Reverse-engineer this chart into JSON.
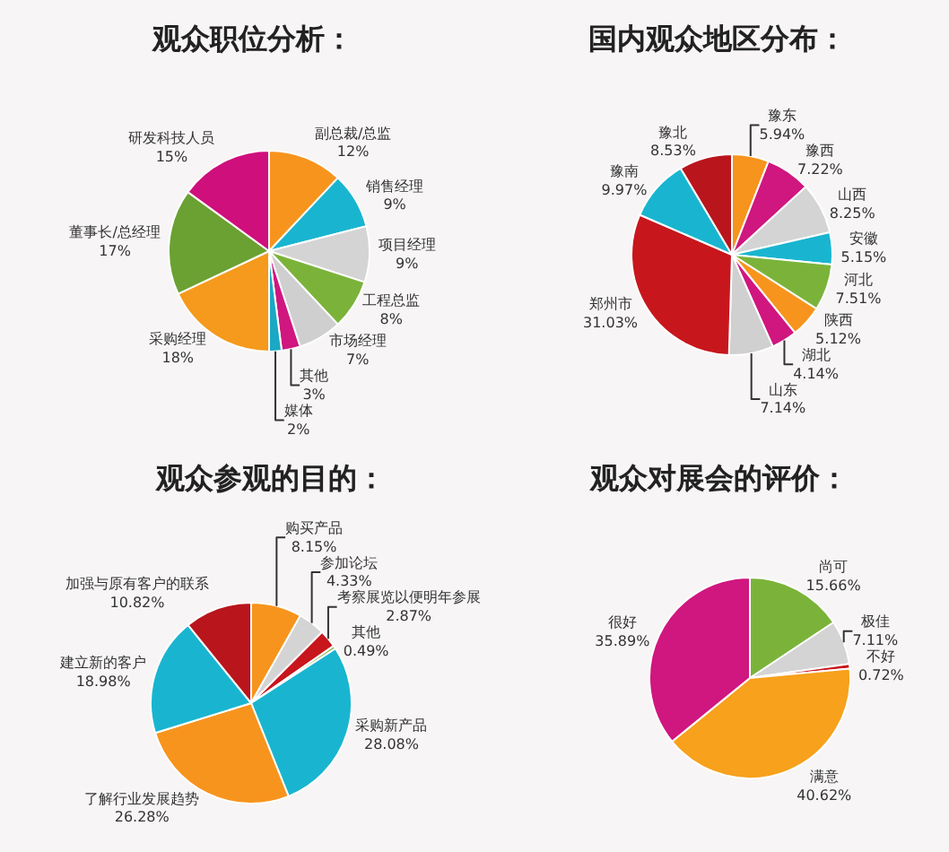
{
  "chart_data": [
    {
      "type": "pie",
      "title": "观众职位分析：",
      "legend": false,
      "categories": [
        "副总裁/总监",
        "销售经理",
        "项目经理",
        "工程总监",
        "市场经理",
        "其他",
        "媒体",
        "采购经理",
        "董事长/总经理",
        "研发科技人员"
      ],
      "values": [
        12,
        9,
        9,
        8,
        7,
        3,
        2,
        18,
        17,
        15
      ],
      "value_labels": [
        "12%",
        "9%",
        "9%",
        "8%",
        "7%",
        "3%",
        "2%",
        "18%",
        "17%",
        "15%"
      ],
      "colors": [
        "#f7941d",
        "#19b5d0",
        "#d4d4d4",
        "#7bb33a",
        "#cfcfcf",
        "#d0167f",
        "#1aa8c4",
        "#f59a1c",
        "#6aa132",
        "#cf0f7c"
      ]
    },
    {
      "type": "pie",
      "title": "国内观众地区分布：",
      "legend": false,
      "categories": [
        "豫东",
        "豫西",
        "山西",
        "安徽",
        "河北",
        "陕西",
        "湖北",
        "山东",
        "郑州市",
        "豫南",
        "豫北"
      ],
      "values": [
        5.94,
        7.22,
        8.25,
        5.15,
        7.51,
        5.12,
        4.14,
        7.14,
        31.03,
        9.97,
        8.53
      ],
      "value_labels": [
        "5.94%",
        "7.22%",
        "8.25%",
        "5.15%",
        "7.51%",
        "5.12%",
        "4.14%",
        "7.14%",
        "31.03%",
        "9.97%",
        "8.53%"
      ],
      "colors": [
        "#f7941d",
        "#d0167f",
        "#d4d4d4",
        "#19b5d0",
        "#7bb33a",
        "#f7941d",
        "#d0167f",
        "#d0d0d0",
        "#c8161d",
        "#19b5d0",
        "#b9151c"
      ]
    },
    {
      "type": "pie",
      "title": "观众参观的目的：",
      "legend": false,
      "categories": [
        "购买产品",
        "参加论坛",
        "考察展览以便明年参展",
        "其他",
        "采购新产品",
        "了解行业发展趋势",
        "建立新的客户",
        "加强与原有客户的联系"
      ],
      "values": [
        8.15,
        4.33,
        2.87,
        0.49,
        28.08,
        26.28,
        18.98,
        10.82
      ],
      "value_labels": [
        "8.15%",
        "4.33%",
        "2.87%",
        "0.49%",
        "28.08%",
        "26.28%",
        "18.98%",
        "10.82%"
      ],
      "colors": [
        "#f7941d",
        "#d4d4d4",
        "#c8161d",
        "#7bb33a",
        "#19b5d0",
        "#f7941d",
        "#19b5d0",
        "#b9151c"
      ]
    },
    {
      "type": "pie",
      "title": "观众对展会的评价：",
      "legend": false,
      "categories": [
        "尚可",
        "极佳",
        "不好",
        "满意",
        "很好"
      ],
      "values": [
        15.66,
        7.11,
        0.72,
        40.62,
        35.89
      ],
      "value_labels": [
        "15.66%",
        "7.11%",
        "0.72%",
        "40.62%",
        "35.89%"
      ],
      "colors": [
        "#7bb33a",
        "#d4d4d4",
        "#c8161d",
        "#f7a11c",
        "#d0167f"
      ]
    }
  ]
}
